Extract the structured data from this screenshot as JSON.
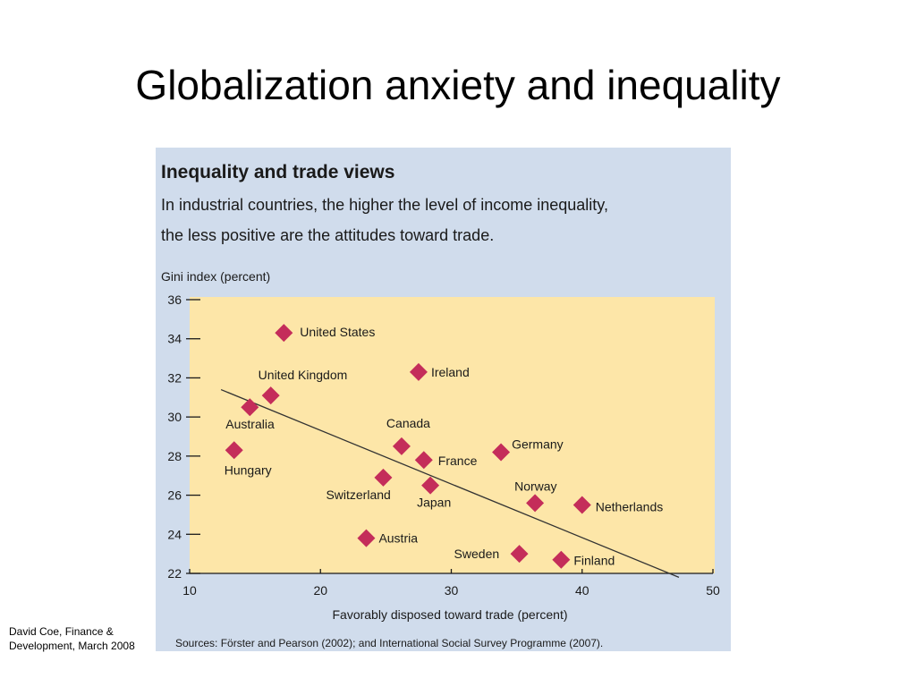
{
  "slide": {
    "title": "Globalization anxiety and inequality",
    "credit_line1": "David Coe, Finance &",
    "credit_line2": "Development, March 2008"
  },
  "chart_data": {
    "type": "scatter",
    "title": "Inequality and trade views",
    "subtitle_line1": "In industrial countries, the higher the level of income inequality,",
    "subtitle_line2": "the less positive are the attitudes toward trade.",
    "ylabel": "Gini index (percent)",
    "xlabel": "Favorably disposed toward trade (percent)",
    "source": "Sources: Förster and Pearson (2002); and International Social Survey Programme (2007).",
    "xlim": [
      10,
      50
    ],
    "ylim": [
      22,
      36
    ],
    "xticks": [
      10,
      20,
      30,
      40,
      50
    ],
    "yticks": [
      22,
      24,
      26,
      28,
      30,
      32,
      34,
      36
    ],
    "points": [
      {
        "label": "United States",
        "x": 17.2,
        "y": 34.3
      },
      {
        "label": "United Kingdom",
        "x": 16.2,
        "y": 31.1
      },
      {
        "label": "Ireland",
        "x": 27.5,
        "y": 32.3
      },
      {
        "label": "Australia",
        "x": 14.6,
        "y": 30.5
      },
      {
        "label": "Hungary",
        "x": 13.4,
        "y": 28.3
      },
      {
        "label": "Canada",
        "x": 26.2,
        "y": 28.5
      },
      {
        "label": "France",
        "x": 27.9,
        "y": 27.8
      },
      {
        "label": "Germany",
        "x": 33.8,
        "y": 28.2
      },
      {
        "label": "Switzerland",
        "x": 24.8,
        "y": 26.9
      },
      {
        "label": "Japan",
        "x": 28.4,
        "y": 26.5
      },
      {
        "label": "Norway",
        "x": 36.4,
        "y": 25.6
      },
      {
        "label": "Netherlands",
        "x": 40.0,
        "y": 25.5
      },
      {
        "label": "Austria",
        "x": 23.5,
        "y": 23.8
      },
      {
        "label": "Sweden",
        "x": 35.2,
        "y": 23.0
      },
      {
        "label": "Finland",
        "x": 38.4,
        "y": 22.7
      }
    ],
    "trendline": {
      "x1": 12.4,
      "y1": 31.4,
      "x2": 47.4,
      "y2": 21.8
    },
    "colors": {
      "plot_bg": "#fde6a8",
      "figure_bg": "#d0dcec",
      "marker": "#c42d5a",
      "text": "#1a1a1a"
    },
    "grid": false
  }
}
